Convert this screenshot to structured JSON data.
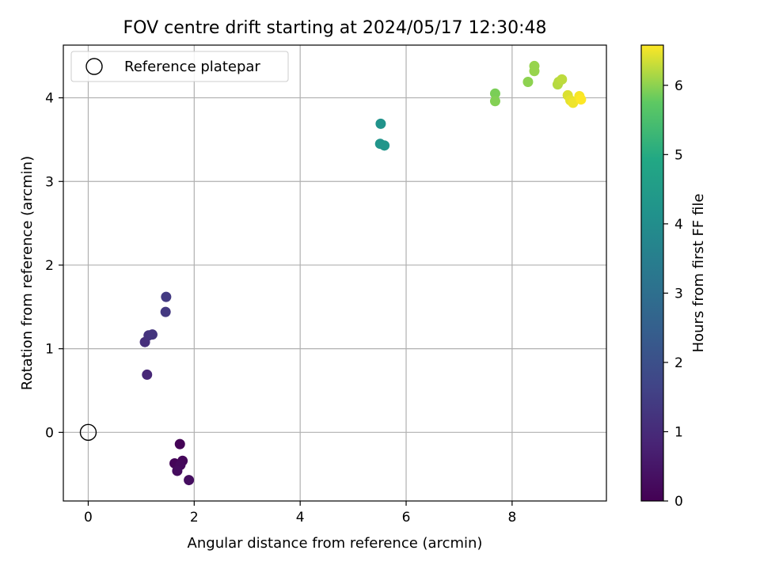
{
  "chart_data": {
    "type": "scatter",
    "title": "FOV centre drift starting at 2024/05/17 12:30:48",
    "xlabel": "Angular distance from reference (arcmin)",
    "ylabel": "Rotation from reference (arcmin)",
    "xlim": [
      -0.47,
      9.78
    ],
    "ylim": [
      -0.82,
      4.63
    ],
    "xticks": [
      0,
      2,
      4,
      6,
      8
    ],
    "yticks": [
      0,
      1,
      2,
      3,
      4
    ],
    "grid": true,
    "legend": {
      "location": "upper-left",
      "entries": [
        "Reference platepar"
      ]
    },
    "reference_point": {
      "name": "Reference platepar",
      "x": 0,
      "y": 0
    },
    "colorbar": {
      "label": "Hours from first FF file",
      "colormap": "viridis",
      "range": [
        0,
        6.58
      ],
      "ticks": [
        0,
        1,
        2,
        3,
        4,
        5,
        6
      ]
    },
    "series": [
      {
        "points": [
          {
            "x": 1.73,
            "y": -0.14,
            "c": 0.05
          },
          {
            "x": 1.63,
            "y": -0.37,
            "c": 0.1
          },
          {
            "x": 1.78,
            "y": -0.34,
            "c": 0.15
          },
          {
            "x": 1.74,
            "y": -0.39,
            "c": 0.2
          },
          {
            "x": 1.68,
            "y": -0.46,
            "c": 0.25
          },
          {
            "x": 1.9,
            "y": -0.57,
            "c": 0.3
          },
          {
            "x": 1.11,
            "y": 0.69,
            "c": 0.9
          },
          {
            "x": 1.07,
            "y": 1.08,
            "c": 1.1
          },
          {
            "x": 1.14,
            "y": 1.16,
            "c": 1.2
          },
          {
            "x": 1.21,
            "y": 1.17,
            "c": 1.25
          },
          {
            "x": 1.46,
            "y": 1.44,
            "c": 1.35
          },
          {
            "x": 1.47,
            "y": 1.62,
            "c": 1.4
          },
          {
            "x": 5.52,
            "y": 3.69,
            "c": 4.2
          },
          {
            "x": 5.51,
            "y": 3.45,
            "c": 4.25
          },
          {
            "x": 5.59,
            "y": 3.43,
            "c": 4.3
          },
          {
            "x": 7.68,
            "y": 4.05,
            "c": 5.9
          },
          {
            "x": 7.68,
            "y": 3.96,
            "c": 5.95
          },
          {
            "x": 8.3,
            "y": 4.19,
            "c": 6.0
          },
          {
            "x": 8.42,
            "y": 4.38,
            "c": 6.05
          },
          {
            "x": 8.42,
            "y": 4.32,
            "c": 6.05
          },
          {
            "x": 8.86,
            "y": 4.16,
            "c": 6.2
          },
          {
            "x": 8.88,
            "y": 4.19,
            "c": 6.22
          },
          {
            "x": 8.94,
            "y": 4.22,
            "c": 6.25
          },
          {
            "x": 9.05,
            "y": 4.03,
            "c": 6.4
          },
          {
            "x": 9.1,
            "y": 3.97,
            "c": 6.45
          },
          {
            "x": 9.15,
            "y": 3.94,
            "c": 6.5
          },
          {
            "x": 9.27,
            "y": 4.02,
            "c": 6.55
          },
          {
            "x": 9.3,
            "y": 3.98,
            "c": 6.58
          }
        ]
      }
    ]
  }
}
